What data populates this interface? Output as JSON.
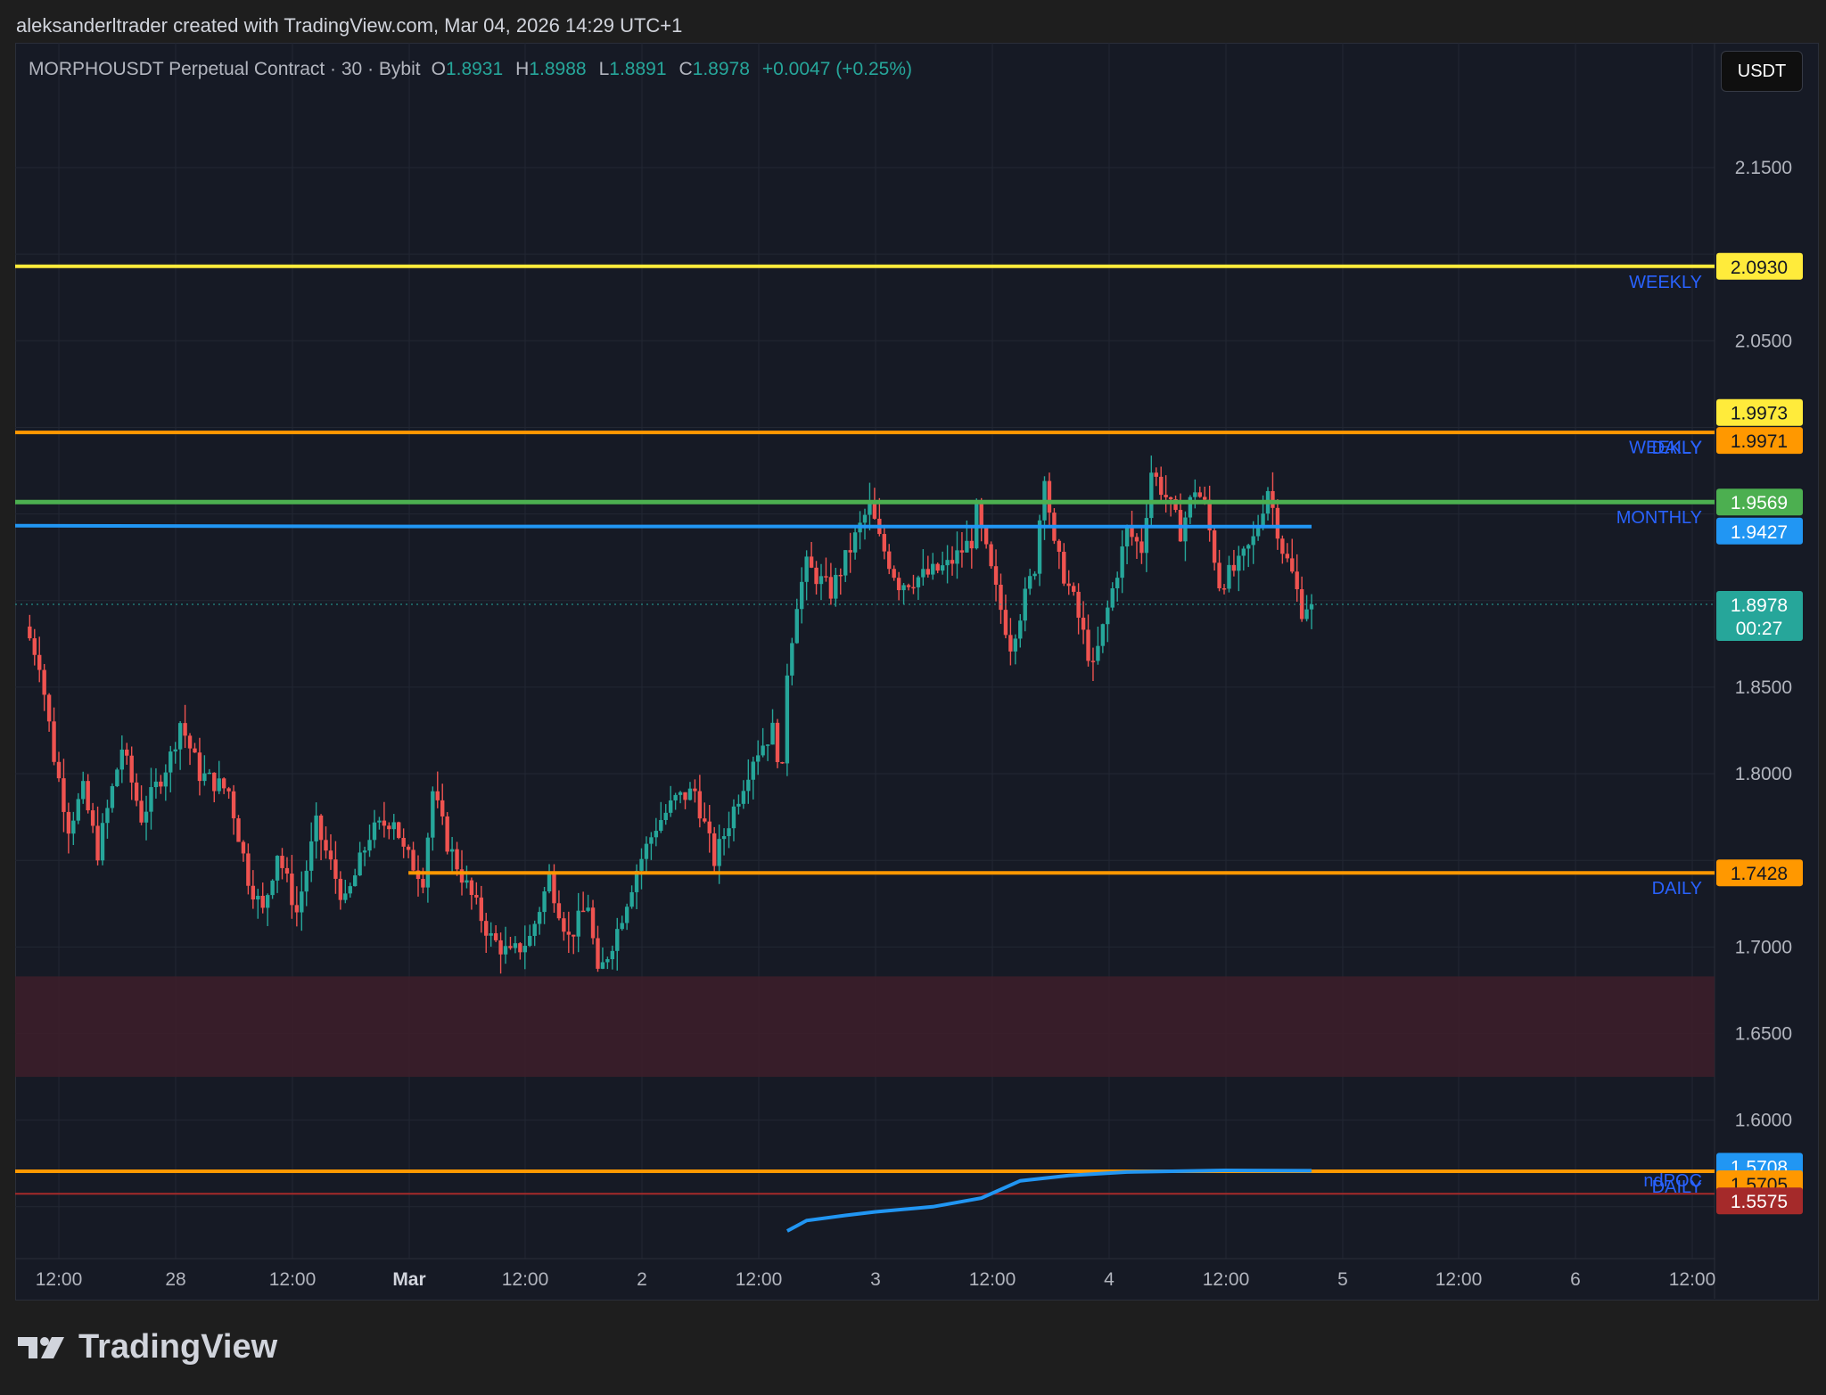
{
  "credit": "aleksanderltrader created with TradingView.com, Mar 04, 2026 14:29 UTC+1",
  "brand": {
    "name": "TradingView",
    "logo_icon": "tradingview-logo-icon"
  },
  "header": {
    "symbol": "MORPHOUSDT Perpetual Contract · 30 · Bybit",
    "open_label": "O",
    "open": "1.8931",
    "high_label": "H",
    "high": "1.8988",
    "low_label": "L",
    "low": "1.8891",
    "close_label": "C",
    "close": "1.8978",
    "change": "+0.0047 (+0.25%)"
  },
  "currency_button": "USDT",
  "colors": {
    "background": "#161a25",
    "up": "#26a69a",
    "down": "#ef5350",
    "weekly_yellow": "#ffeb3b",
    "daily_orange": "#ff9800",
    "monthly_green": "#4caf50",
    "vwap_blue": "#2196f3",
    "label_blue": "#2962ff",
    "ndpoc_red": "#a52a2a",
    "zone_fill": "#3d1f2a"
  },
  "chart_data": {
    "type": "candlestick",
    "timeframe": "30",
    "y_axis_ticks": [
      "2.1500",
      "2.0500",
      "1.8500",
      "1.8000",
      "1.7000",
      "1.6500",
      "1.6000"
    ],
    "ylim": [
      1.53,
      2.2
    ],
    "x_axis_ticks": [
      "12:00",
      "28",
      "12:00",
      "Mar",
      "12:00",
      "2",
      "12:00",
      "3",
      "12:00",
      "4",
      "12:00",
      "5",
      "12:00",
      "6",
      "12:00"
    ],
    "last_price": "1.8978",
    "countdown": "00:27",
    "price_path_nodes": [
      [
        1.885,
        "Feb 27 09:00"
      ],
      [
        1.865,
        "Feb 27 10:30"
      ],
      [
        1.81,
        "Feb 27 12:00"
      ],
      [
        1.77,
        "Feb 27 13:30"
      ],
      [
        1.79,
        "Feb 27 15:00"
      ],
      [
        1.755,
        "Feb 27 16:30"
      ],
      [
        1.815,
        "Feb 27 19:00"
      ],
      [
        1.775,
        "Feb 27 21:00"
      ],
      [
        1.81,
        "Feb 28 00:00"
      ],
      [
        1.83,
        "Feb 28 01:00"
      ],
      [
        1.8,
        "Feb 28 03:00"
      ],
      [
        1.79,
        "Feb 28 06:00"
      ],
      [
        1.74,
        "Feb 28 08:00"
      ],
      [
        1.72,
        "Feb 28 09:30"
      ],
      [
        1.755,
        "Feb 28 11:00"
      ],
      [
        1.72,
        "Feb 28 13:00"
      ],
      [
        1.77,
        "Feb 28 15:00"
      ],
      [
        1.725,
        "Feb 28 18:00"
      ],
      [
        1.765,
        "Feb 28 20:30"
      ],
      [
        1.775,
        "Feb 28 23:00"
      ],
      [
        1.755,
        "Mar 01 00:00"
      ],
      [
        1.74,
        "Mar 01 02:00"
      ],
      [
        1.79,
        "Mar 01 03:00"
      ],
      [
        1.76,
        "Mar 01 04:30"
      ],
      [
        1.735,
        "Mar 01 06:30"
      ],
      [
        1.705,
        "Mar 01 09:00"
      ],
      [
        1.695,
        "Mar 01 11:00"
      ],
      [
        1.705,
        "Mar 01 13:00"
      ],
      [
        1.74,
        "Mar 01 15:00"
      ],
      [
        1.705,
        "Mar 01 17:00"
      ],
      [
        1.725,
        "Mar 01 19:00"
      ],
      [
        1.682,
        "Mar 01 20:00"
      ],
      [
        1.71,
        "Mar 01 22:00"
      ],
      [
        1.745,
        "Mar 02 00:00"
      ],
      [
        1.77,
        "Mar 02 02:00"
      ],
      [
        1.785,
        "Mar 02 04:00"
      ],
      [
        1.79,
        "Mar 02 06:00"
      ],
      [
        1.75,
        "Mar 02 08:00"
      ],
      [
        1.78,
        "Mar 02 10:00"
      ],
      [
        1.81,
        "Mar 02 12:00"
      ],
      [
        1.825,
        "Mar 02 14:00"
      ],
      [
        1.8,
        "Mar 02 15:00"
      ],
      [
        1.86,
        "Mar 02 15:30"
      ],
      [
        1.9,
        "Mar 02 16:30"
      ],
      [
        1.92,
        "Mar 02 17:30"
      ],
      [
        1.905,
        "Mar 02 20:00"
      ],
      [
        1.93,
        "Mar 02 22:00"
      ],
      [
        1.955,
        "Mar 03 00:00"
      ],
      [
        1.935,
        "Mar 03 01:00"
      ],
      [
        1.91,
        "Mar 03 03:00"
      ],
      [
        1.915,
        "Mar 03 06:00"
      ],
      [
        1.92,
        "Mar 03 08:00"
      ],
      [
        1.935,
        "Mar 03 10:30"
      ],
      [
        1.95,
        "Mar 03 11:00"
      ],
      [
        1.905,
        "Mar 03 13:00"
      ],
      [
        1.875,
        "Mar 03 14:30"
      ],
      [
        1.92,
        "Mar 03 17:00"
      ],
      [
        1.975,
        "Mar 03 18:00"
      ],
      [
        1.93,
        "Mar 03 19:00"
      ],
      [
        1.9,
        "Mar 03 21:00"
      ],
      [
        1.86,
        "Mar 03 23:00"
      ],
      [
        1.895,
        "Mar 04 00:30"
      ],
      [
        1.94,
        "Mar 04 02:30"
      ],
      [
        1.93,
        "Mar 04 04:00"
      ],
      [
        1.975,
        "Mar 04 05:00"
      ],
      [
        1.96,
        "Mar 04 06:30"
      ],
      [
        1.94,
        "Mar 04 08:00"
      ],
      [
        1.965,
        "Mar 04 09:30"
      ],
      [
        1.955,
        "Mar 04 10:30"
      ],
      [
        1.91,
        "Mar 04 12:00"
      ],
      [
        1.92,
        "Mar 04 14:00"
      ],
      [
        1.935,
        "Mar 04 15:30"
      ],
      [
        1.965,
        "Mar 04 17:00"
      ],
      [
        1.93,
        "Mar 04 18:30"
      ],
      [
        1.915,
        "Mar 04 19:30"
      ],
      [
        1.895,
        "Mar 04 20:30"
      ],
      [
        1.8978,
        "Mar 04 21:00"
      ]
    ],
    "horizontal_levels": [
      {
        "name": "WEEKLY",
        "label": "WEEKLY",
        "price": "2.0930",
        "value": 2.093,
        "color": "#ffeb3b",
        "span": "full"
      },
      {
        "name": "WEEKLY",
        "label": "WEEKLY",
        "price": "1.9973",
        "value": 1.9973,
        "color": "#ffeb3b",
        "span": "full"
      },
      {
        "name": "DAILY",
        "label": "DAILY",
        "price": "1.9971",
        "value": 1.9971,
        "color": "#ff9800",
        "span": "full"
      },
      {
        "name": "MONTHLY",
        "label": "MONTHLY",
        "price": "1.9569",
        "value": 1.9569,
        "color": "#4caf50",
        "span": "full"
      },
      {
        "name": "DAILY",
        "label": "DAILY",
        "price": "1.7428",
        "value": 1.7428,
        "color": "#ff9800",
        "span": "from Mar 01 00:00"
      },
      {
        "name": "DAILY",
        "label": "DAILY",
        "price": "1.5705",
        "value": 1.5705,
        "color": "#ff9800",
        "span": "full"
      },
      {
        "name": "ndPOC",
        "label": "ndPOC",
        "price": "1.5575",
        "value": 1.5575,
        "color": "#a52a2a",
        "span": "full"
      }
    ],
    "vwap_lines": [
      {
        "price": "1.9427",
        "value": 1.9427,
        "color": "#2196f3"
      },
      {
        "price": "1.5708",
        "value": 1.5708,
        "color": "#2196f3",
        "curve": [
          [
            1.536,
            "Mar 02 15:00"
          ],
          [
            1.542,
            "Mar 02 17:00"
          ],
          [
            1.545,
            "Mar 02 21:00"
          ],
          [
            1.547,
            "Mar 03 00:00"
          ],
          [
            1.55,
            "Mar 03 06:00"
          ],
          [
            1.555,
            "Mar 03 11:00"
          ],
          [
            1.565,
            "Mar 03 15:00"
          ],
          [
            1.568,
            "Mar 03 20:00"
          ],
          [
            1.57,
            "Mar 04 02:00"
          ],
          [
            1.571,
            "Mar 04 12:00"
          ],
          [
            1.5708,
            "Mar 04 21:00"
          ]
        ]
      }
    ],
    "zone": {
      "from": 1.625,
      "to": 1.683
    }
  }
}
